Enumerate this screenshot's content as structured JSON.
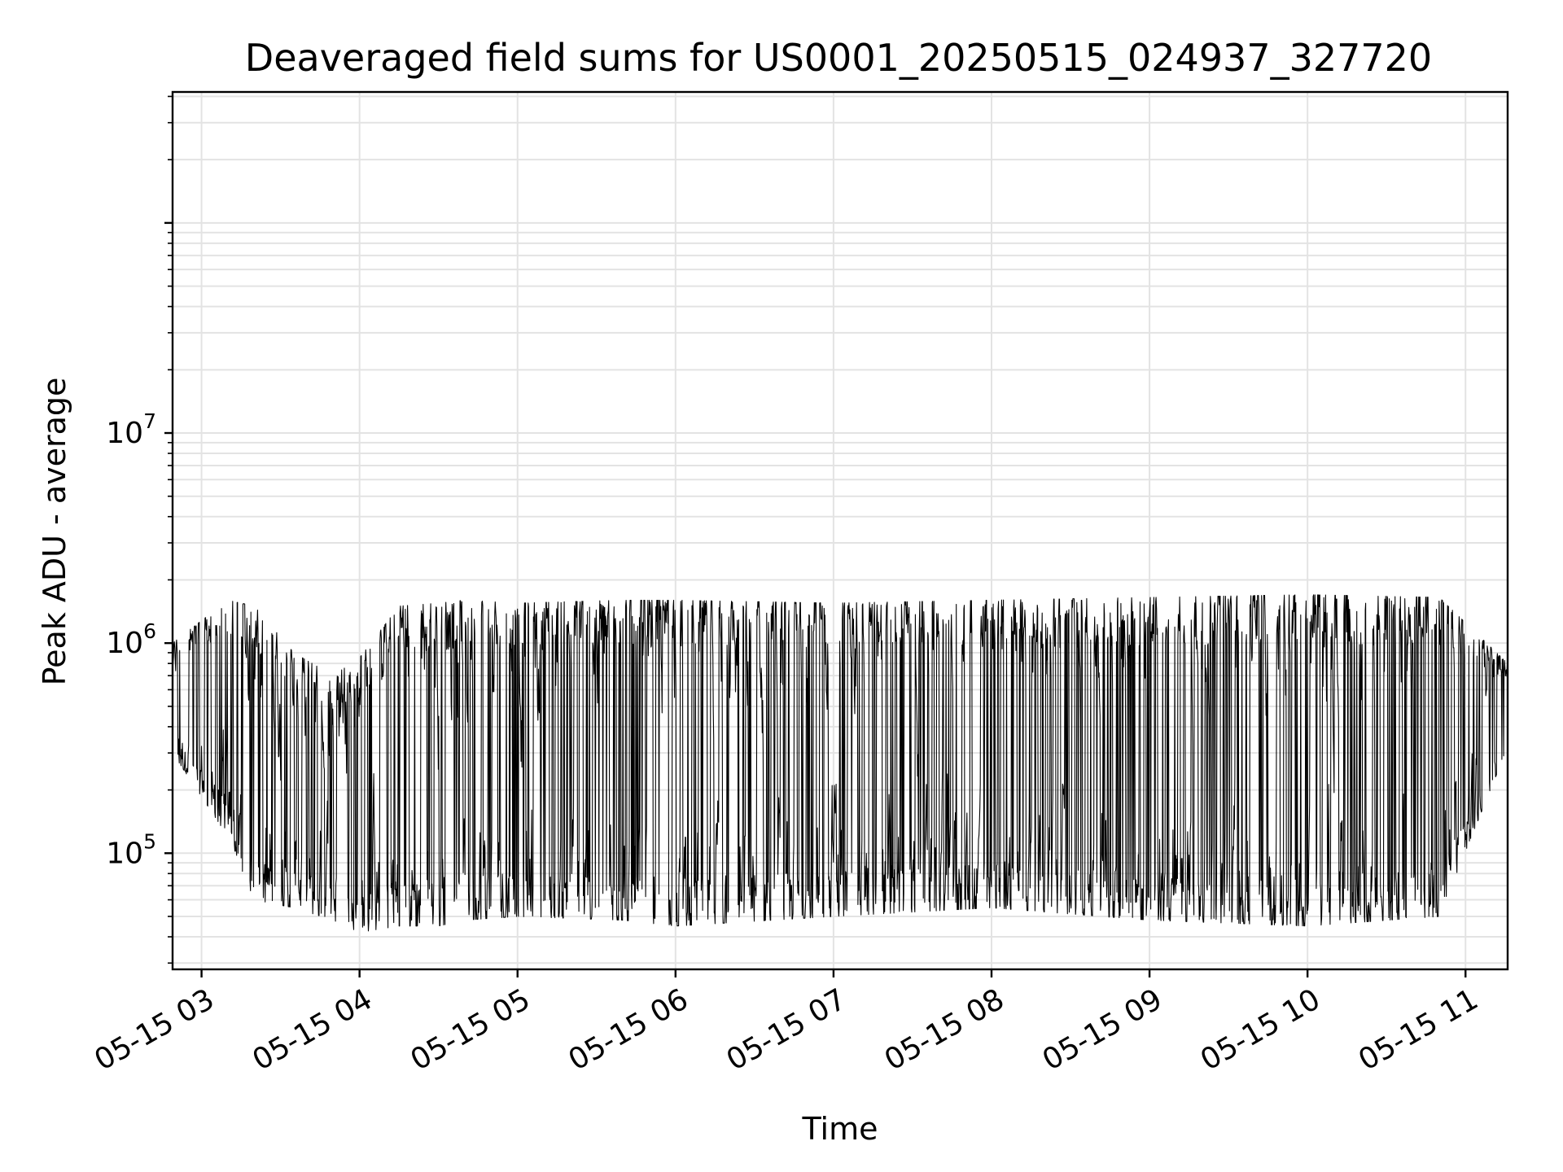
{
  "chart_data": {
    "type": "line",
    "title": "Deaveraged field sums for US0001_20250515_024937_327720",
    "xlabel": "Time",
    "ylabel": "Peak ADU - average",
    "y_scale": "log",
    "ylim": [
      28000,
      420000000
    ],
    "xlim": [
      "2025-05-15 02:49",
      "2025-05-15 11:16"
    ],
    "grid": true,
    "x_ticks": [
      {
        "label": "05-15 03",
        "value": "2025-05-15 03:00"
      },
      {
        "label": "05-15 04",
        "value": "2025-05-15 04:00"
      },
      {
        "label": "05-15 05",
        "value": "2025-05-15 05:00"
      },
      {
        "label": "05-15 06",
        "value": "2025-05-15 06:00"
      },
      {
        "label": "05-15 07",
        "value": "2025-05-15 07:00"
      },
      {
        "label": "05-15 08",
        "value": "2025-05-15 08:00"
      },
      {
        "label": "05-15 09",
        "value": "2025-05-15 09:00"
      },
      {
        "label": "05-15 10",
        "value": "2025-05-15 10:00"
      },
      {
        "label": "05-15 11",
        "value": "2025-05-15 11:00"
      }
    ],
    "y_ticks": [
      {
        "base": "10",
        "exp": "5",
        "value": 100000
      },
      {
        "base": "10",
        "exp": "6",
        "value": 1000000
      },
      {
        "base": "10",
        "exp": "7",
        "value": 10000000
      }
    ],
    "series_color": "#000000",
    "envelope": {
      "x": [
        "2025-05-15 02:49",
        "2025-05-15 03:10",
        "2025-05-15 03:20",
        "2025-05-15 03:35",
        "2025-05-15 03:50",
        "2025-05-15 04:00",
        "2025-05-15 04:15",
        "2025-05-15 04:30",
        "2025-05-15 04:40",
        "2025-05-15 05:00",
        "2025-05-15 05:40",
        "2025-05-15 06:00",
        "2025-05-15 07:00",
        "2025-05-15 08:00",
        "2025-05-15 09:00",
        "2025-05-15 10:00",
        "2025-05-15 10:50",
        "2025-05-15 11:16"
      ],
      "y_high": [
        1000000,
        1600000,
        1500000,
        900000,
        700000,
        850000,
        1500000,
        1550000,
        1600000,
        1550000,
        1600000,
        1600000,
        1550000,
        1600000,
        1650000,
        1700000,
        1650000,
        800000
      ],
      "y_low": [
        300000,
        120000,
        60000,
        55000,
        48000,
        42000,
        45000,
        45000,
        48000,
        50000,
        48000,
        45000,
        50000,
        55000,
        48000,
        45000,
        50000,
        320000
      ]
    }
  }
}
